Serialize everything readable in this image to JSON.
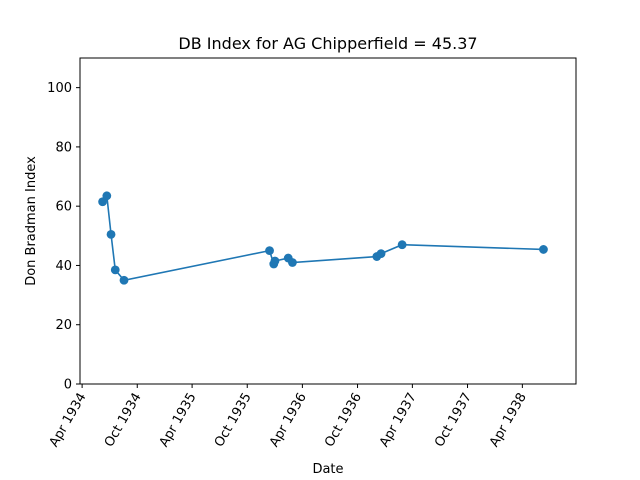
{
  "chart_data": {
    "type": "line",
    "title": "DB Index for AG Chipperfield = 45.37",
    "xlabel": "Date",
    "ylabel": "Don Bradman Index",
    "ylim": [
      0,
      110
    ],
    "xlim": [
      "1934-03-25",
      "1938-09-26"
    ],
    "grid": false,
    "marker": "circle",
    "color": "#1f77b4",
    "x_ticks": [
      "1934-04-01",
      "1934-10-01",
      "1935-04-01",
      "1935-10-01",
      "1936-04-01",
      "1936-10-01",
      "1937-04-01",
      "1937-10-01",
      "1938-04-01"
    ],
    "x_tick_labels": [
      "Apr 1934",
      "Oct 1934",
      "Apr 1935",
      "Oct 1935",
      "Apr 1936",
      "Oct 1936",
      "Apr 1937",
      "Oct 1937",
      "Apr 1938"
    ],
    "y_ticks": [
      0,
      20,
      40,
      60,
      80,
      100
    ],
    "y_tick_labels": [
      "0",
      "20",
      "40",
      "60",
      "80",
      "100"
    ],
    "series": [
      {
        "x": [
          "1934-06-08",
          "1934-06-22",
          "1934-07-06",
          "1934-07-20",
          "1934-08-18",
          "1935-12-14",
          "1935-12-28",
          "1936-01-01",
          "1936-02-14",
          "1936-02-28",
          "1936-12-04",
          "1936-12-18",
          "1937-02-26",
          "1938-06-10"
        ],
        "y": [
          61.5,
          63.5,
          50.5,
          38.5,
          35.0,
          45.0,
          40.5,
          41.5,
          42.5,
          41.0,
          43.0,
          44.0,
          47.0,
          45.4
        ]
      }
    ]
  }
}
